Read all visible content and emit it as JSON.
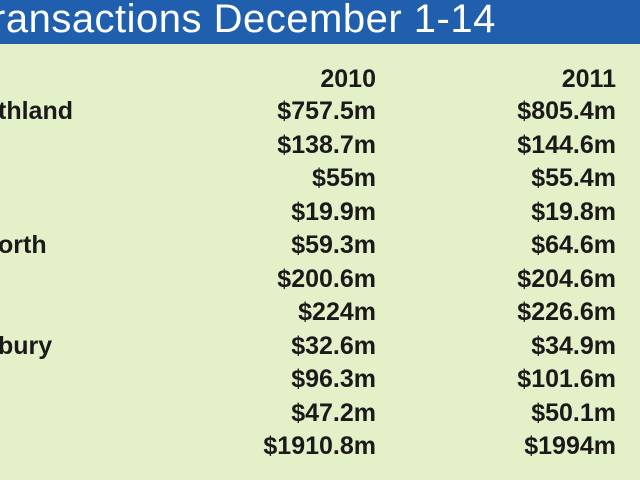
{
  "colors": {
    "title_background": "#1f5fae",
    "title_text": "#ffffff",
    "table_background": "#e4f0c8",
    "text": "#1a1a1a"
  },
  "chart_data": {
    "type": "table",
    "title": "ransactions December 1-14",
    "columns": [
      "2010",
      "2011"
    ],
    "rows": [
      {
        "label": "thland",
        "values": [
          "$757.5m",
          "$805.4m"
        ]
      },
      {
        "label": "",
        "values": [
          "$138.7m",
          "$144.6m"
        ]
      },
      {
        "label": "",
        "values": [
          "$55m",
          "$55.4m"
        ]
      },
      {
        "label": "",
        "values": [
          "$19.9m",
          "$19.8m"
        ]
      },
      {
        "label": "orth",
        "values": [
          "$59.3m",
          "$64.6m"
        ]
      },
      {
        "label": "",
        "values": [
          "$200.6m",
          "$204.6m"
        ]
      },
      {
        "label": "",
        "values": [
          "$224m",
          "$226.6m"
        ]
      },
      {
        "label": "bury",
        "values": [
          "$32.6m",
          "$34.9m"
        ]
      },
      {
        "label": "",
        "values": [
          "$96.3m",
          "$101.6m"
        ]
      },
      {
        "label": "",
        "values": [
          "$47.2m",
          "$50.1m"
        ]
      },
      {
        "label": "",
        "values": [
          "$1910.8m",
          "$1994m"
        ]
      }
    ]
  }
}
